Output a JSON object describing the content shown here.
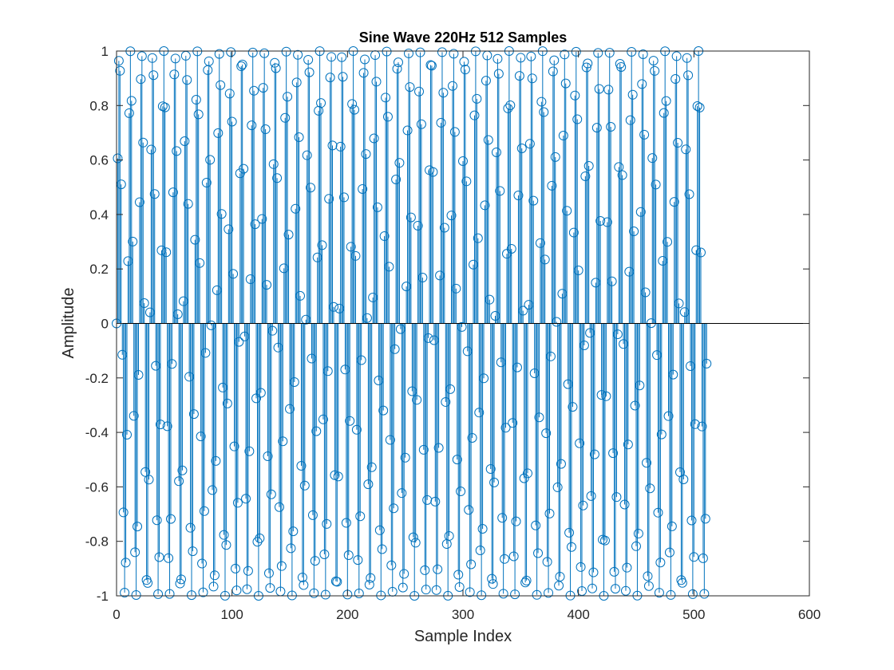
{
  "chart_data": {
    "type": "stem",
    "title": "Sine Wave 220Hz 512 Samples",
    "xlabel": "Sample Index",
    "ylabel": "Amplitude",
    "xlim": [
      0,
      600
    ],
    "ylim": [
      -1,
      1
    ],
    "xticks": [
      "0",
      "100",
      "200",
      "300",
      "400",
      "500",
      "600"
    ],
    "yticks": [
      "-1",
      "-0.8",
      "-0.6",
      "-0.4",
      "-0.2",
      "0",
      "0.2",
      "0.4",
      "0.6",
      "0.8",
      "1"
    ],
    "grid": false,
    "series": [
      {
        "color": "#0072BD",
        "marker": "circle",
        "frequency_hz": 220,
        "sample_count": 512,
        "x_start": 0,
        "x_end": 511,
        "samples_per_cycle": 9.6458,
        "first_values": [
          0,
          0.62,
          0.98,
          0.89,
          0.42,
          -0.23,
          -0.79,
          -0.99,
          -0.77,
          -0.2,
          0.45,
          0.9,
          0.97
        ]
      }
    ]
  }
}
